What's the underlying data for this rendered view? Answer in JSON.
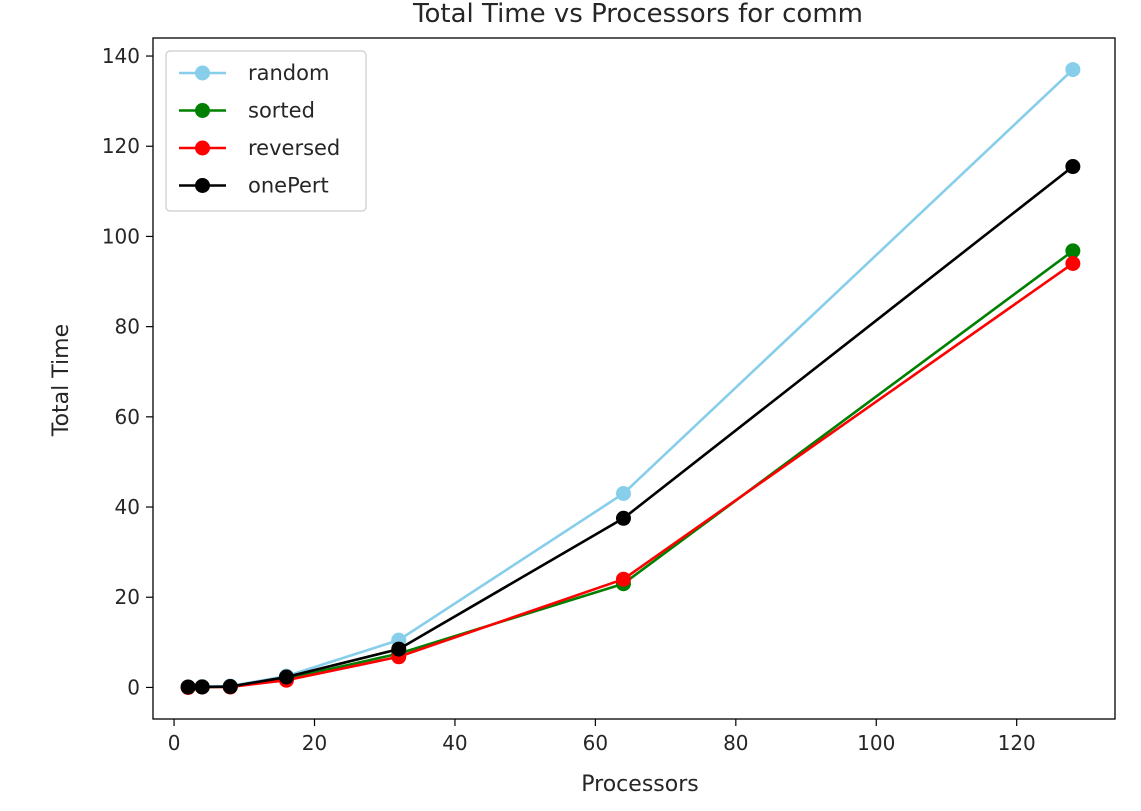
{
  "chart_data": {
    "type": "line",
    "title": "Total Time vs Processors for comm",
    "xlabel": "Processors",
    "ylabel": "Total Time",
    "xlim": [
      -3,
      134
    ],
    "ylim": [
      -7,
      144
    ],
    "xticks": [
      0,
      20,
      40,
      60,
      80,
      100,
      120
    ],
    "yticks": [
      0,
      20,
      40,
      60,
      80,
      100,
      120,
      140
    ],
    "grid": false,
    "legend_position": "top-left",
    "x": [
      2,
      4,
      8,
      16,
      32,
      64,
      128
    ],
    "series": [
      {
        "name": "random",
        "color": "#87CEEB",
        "values": [
          0.1,
          0.2,
          0.3,
          2.5,
          10.5,
          43.0,
          137.0
        ]
      },
      {
        "name": "sorted",
        "color": "#008000",
        "values": [
          0.0,
          0.1,
          0.1,
          1.9,
          7.5,
          23.0,
          96.8
        ]
      },
      {
        "name": "reversed",
        "color": "#FF0000",
        "values": [
          0.0,
          0.1,
          0.1,
          1.6,
          6.8,
          24.0,
          94.0
        ]
      },
      {
        "name": "onePert",
        "color": "#000000",
        "values": [
          0.1,
          0.1,
          0.2,
          2.3,
          8.5,
          37.5,
          115.5
        ]
      }
    ]
  }
}
